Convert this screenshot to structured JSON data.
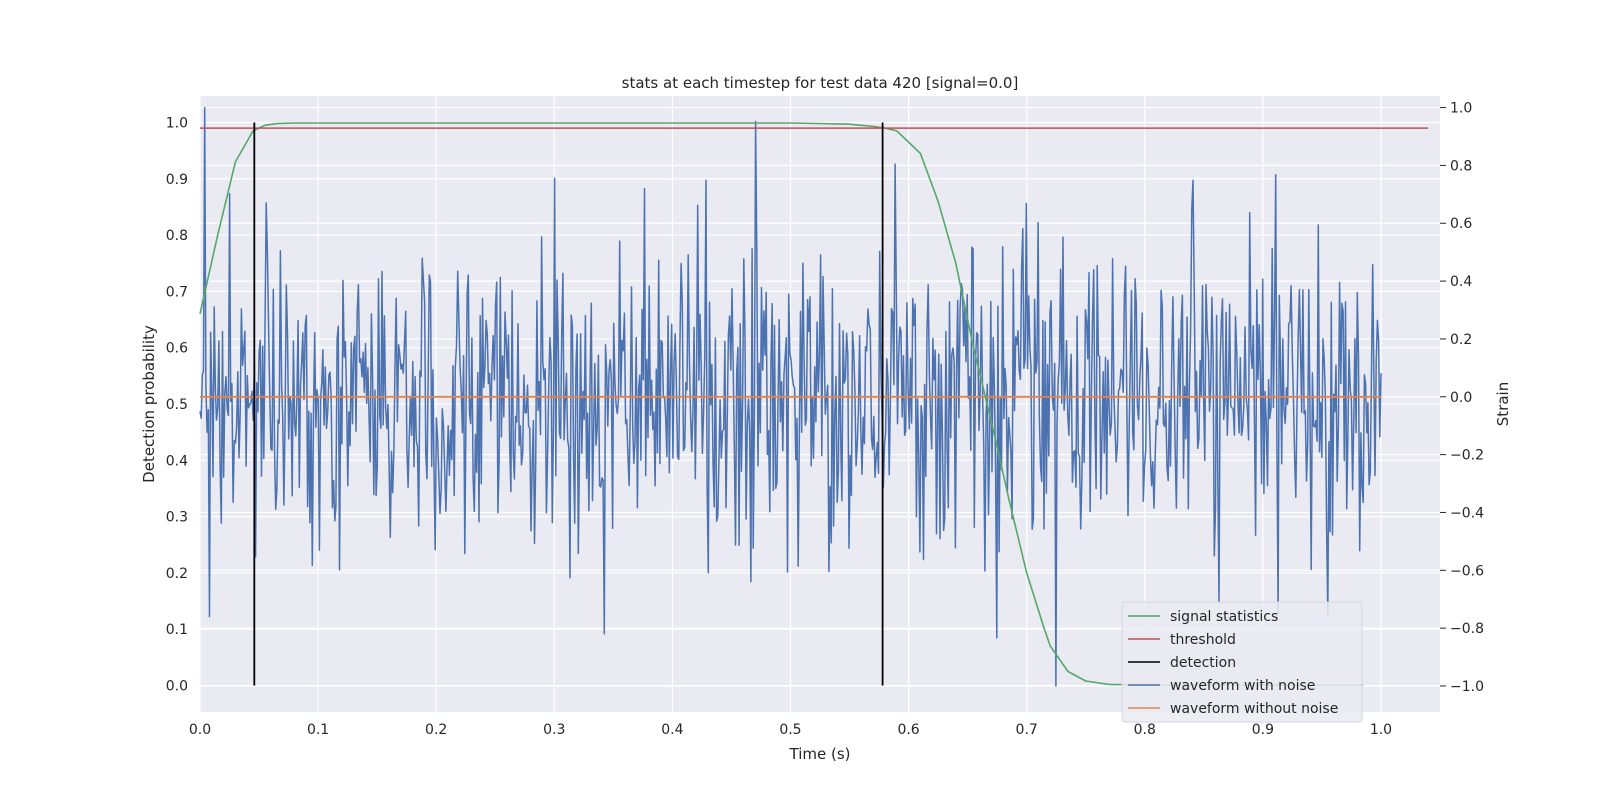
{
  "chart_data": {
    "type": "line",
    "title": "stats at each timestep for test data 420 [signal=0.0]",
    "xlabel": "Time (s)",
    "ylabel": "Detection probability",
    "y2label": "Strain",
    "xlim": [
      0.0,
      1.05
    ],
    "ylim": [
      -0.047,
      1.047
    ],
    "y2lim": [
      -1.09,
      1.04
    ],
    "xticks": [
      "0.0",
      "0.1",
      "0.2",
      "0.3",
      "0.4",
      "0.5",
      "0.6",
      "0.7",
      "0.8",
      "0.9",
      "1.0"
    ],
    "yticks": [
      "0.0",
      "0.1",
      "0.2",
      "0.3",
      "0.4",
      "0.5",
      "0.6",
      "0.7",
      "0.8",
      "0.9",
      "1.0"
    ],
    "y2ticks": [
      "−1.0",
      "−0.8",
      "−0.6",
      "−0.4",
      "−0.2",
      "0.0",
      "0.2",
      "0.4",
      "0.6",
      "0.8",
      "1.0"
    ],
    "grid": true,
    "legend_position": "lower-right",
    "series": [
      {
        "name": "signal statistics",
        "color": "#55a868",
        "axis": "left",
        "x": [
          0.0,
          0.015,
          0.03,
          0.045,
          0.055,
          0.065,
          0.08,
          0.1,
          0.2,
          0.3,
          0.4,
          0.5,
          0.55,
          0.57,
          0.58,
          0.59,
          0.595,
          0.61,
          0.625,
          0.64,
          0.655,
          0.67,
          0.685,
          0.7,
          0.715,
          0.72,
          0.735,
          0.75,
          0.77,
          0.8,
          0.9,
          0.985
        ],
        "y": [
          0.66,
          0.8,
          0.93,
          0.985,
          0.995,
          0.998,
          0.999,
          0.999,
          0.999,
          0.999,
          0.999,
          0.999,
          0.997,
          0.993,
          0.99,
          0.985,
          0.975,
          0.945,
          0.86,
          0.75,
          0.6,
          0.47,
          0.33,
          0.2,
          0.1,
          0.07,
          0.025,
          0.008,
          0.002,
          0.001,
          0.001,
          0.001
        ]
      },
      {
        "name": "threshold",
        "color": "#c44e52",
        "axis": "left",
        "x": [
          0.0,
          1.04
        ],
        "y": [
          0.99,
          0.99
        ]
      },
      {
        "name": "detection",
        "color": "#000000",
        "axis": "left",
        "type": "vlines",
        "x": [
          0.046,
          0.578
        ],
        "y": [
          0.0,
          1.0
        ]
      },
      {
        "name": "waveform with noise",
        "color": "#4c72b0",
        "axis": "right",
        "x_range": [
          0.0,
          1.0
        ],
        "samples": 1000,
        "mean": 0.0,
        "std": 0.25,
        "notable_values": [
          {
            "x": 0.004,
            "y": 1.0
          },
          {
            "x": 0.008,
            "y": -0.76
          },
          {
            "x": 0.342,
            "y": -0.82
          },
          {
            "x": 0.725,
            "y": -1.0
          },
          {
            "x": 0.84,
            "y": 0.65
          },
          {
            "x": 0.955,
            "y": -0.75
          }
        ]
      },
      {
        "name": "waveform without noise",
        "color": "#dd8452",
        "axis": "right",
        "x": [
          0.0,
          1.0
        ],
        "y": [
          0.0,
          0.0
        ]
      }
    ],
    "legend": [
      {
        "label": "signal statistics",
        "color": "#55a868"
      },
      {
        "label": "threshold",
        "color": "#c44e52"
      },
      {
        "label": "detection",
        "color": "#000000"
      },
      {
        "label": "waveform with noise",
        "color": "#4c72b0"
      },
      {
        "label": "waveform without noise",
        "color": "#dd8452"
      }
    ]
  }
}
